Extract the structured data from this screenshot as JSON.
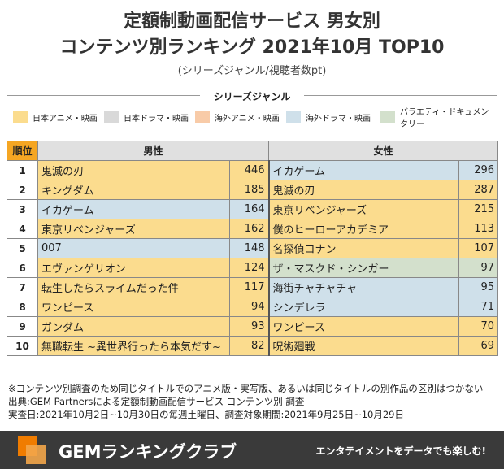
{
  "title_line1": "定額制動画配信サービス 男女別",
  "title_line2": "コンテンツ別ランキング 2021年10月 TOP10",
  "subtitle": "(シリーズジャンル/視聴者数pt)",
  "legend": {
    "title": "シリーズジャンル",
    "items": [
      {
        "label": "日本アニメ・映画",
        "color": "#fbdc8e"
      },
      {
        "label": "日本ドラマ・映画",
        "color": "#d9d9d9"
      },
      {
        "label": "海外アニメ・映画",
        "color": "#f8cba8"
      },
      {
        "label": "海外ドラマ・映画",
        "color": "#cfe0ea"
      },
      {
        "label": "バラエティ・ドキュメンタリー",
        "color": "#d3e0cc"
      }
    ]
  },
  "headers": {
    "rank": "順位",
    "male": "男性",
    "female": "女性"
  },
  "chart_data": {
    "type": "table",
    "columns": [
      "順位",
      "男性",
      "pt",
      "女性",
      "pt"
    ],
    "rows": [
      {
        "rank": "1",
        "male": {
          "title": "鬼滅の刃",
          "value": 446,
          "genre": "日本アニメ・映画"
        },
        "female": {
          "title": "イカゲーム",
          "value": 296,
          "genre": "海外ドラマ・映画"
        }
      },
      {
        "rank": "2",
        "male": {
          "title": "キングダム",
          "value": 185,
          "genre": "日本アニメ・映画"
        },
        "female": {
          "title": "鬼滅の刃",
          "value": 287,
          "genre": "日本アニメ・映画"
        }
      },
      {
        "rank": "3",
        "male": {
          "title": "イカゲーム",
          "value": 164,
          "genre": "海外ドラマ・映画"
        },
        "female": {
          "title": "東京リベンジャーズ",
          "value": 215,
          "genre": "日本アニメ・映画"
        }
      },
      {
        "rank": "4",
        "male": {
          "title": "東京リベンジャーズ",
          "value": 162,
          "genre": "日本アニメ・映画"
        },
        "female": {
          "title": "僕のヒーローアカデミア",
          "value": 113,
          "genre": "日本アニメ・映画"
        }
      },
      {
        "rank": "5",
        "male": {
          "title": "007",
          "value": 148,
          "genre": "海外ドラマ・映画"
        },
        "female": {
          "title": "名探偵コナン",
          "value": 107,
          "genre": "日本アニメ・映画"
        }
      },
      {
        "rank": "6",
        "male": {
          "title": "エヴァンゲリオン",
          "value": 124,
          "genre": "日本アニメ・映画"
        },
        "female": {
          "title": "ザ・マスクド・シンガー",
          "value": 97,
          "genre": "バラエティ・ドキュメンタリー"
        }
      },
      {
        "rank": "7",
        "male": {
          "title": "転生したらスライムだった件",
          "value": 117,
          "genre": "日本アニメ・映画"
        },
        "female": {
          "title": "海街チャチャチャ",
          "value": 95,
          "genre": "海外ドラマ・映画"
        }
      },
      {
        "rank": "8",
        "male": {
          "title": "ワンピース",
          "value": 94,
          "genre": "日本アニメ・映画"
        },
        "female": {
          "title": "シンデレラ",
          "value": 71,
          "genre": "海外ドラマ・映画"
        }
      },
      {
        "rank": "9",
        "male": {
          "title": "ガンダム",
          "value": 93,
          "genre": "日本アニメ・映画"
        },
        "female": {
          "title": "ワンピース",
          "value": 70,
          "genre": "日本アニメ・映画"
        }
      },
      {
        "rank": "10",
        "male": {
          "title": "無職転生 ~異世界行ったら本気だす~",
          "value": 82,
          "genre": "日本アニメ・映画"
        },
        "female": {
          "title": "呪術廻戦",
          "value": 69,
          "genre": "日本アニメ・映画"
        }
      }
    ]
  },
  "notes": [
    "※コンテンツ別調査のため同じタイトルでのアニメ版・実写版、あるいは同じタイトルの別作品の区別はつかない",
    "出典:GEM Partnersによる定額制動画配信サービス コンテンツ別 調査",
    "実査日:2021年10月2日~10月30日の毎週土曜日、調査対象期間:2021年9月25日~10月29日"
  ],
  "footer": {
    "brand": "GEMランキングクラブ",
    "tagline": "エンタテイメントをデータでも楽しむ!"
  }
}
